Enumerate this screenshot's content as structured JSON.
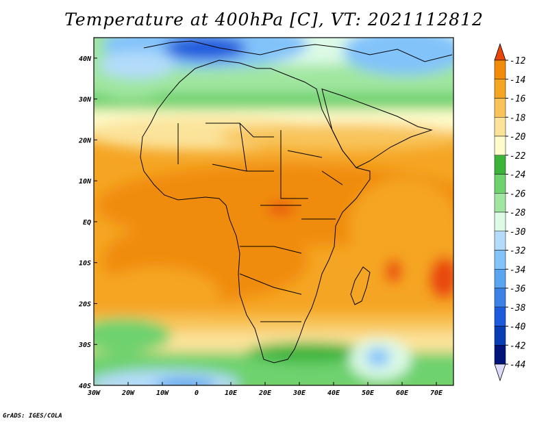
{
  "title": "Temperature at 400hPa [C], VT: 2021112812",
  "credit": "GrADS: IGES/COLA",
  "map": {
    "lon_range": [
      -30,
      75
    ],
    "lat_range": [
      -40,
      45
    ],
    "lon_ticks": [
      {
        "value": -30,
        "label": "30W"
      },
      {
        "value": -20,
        "label": "20W"
      },
      {
        "value": -10,
        "label": "10W"
      },
      {
        "value": 0,
        "label": "0"
      },
      {
        "value": 10,
        "label": "10E"
      },
      {
        "value": 20,
        "label": "20E"
      },
      {
        "value": 30,
        "label": "30E"
      },
      {
        "value": 40,
        "label": "40E"
      },
      {
        "value": 50,
        "label": "50E"
      },
      {
        "value": 60,
        "label": "60E"
      },
      {
        "value": 70,
        "label": "70E"
      }
    ],
    "lat_ticks": [
      {
        "value": 40,
        "label": "40N"
      },
      {
        "value": 30,
        "label": "30N"
      },
      {
        "value": 20,
        "label": "20N"
      },
      {
        "value": 10,
        "label": "10N"
      },
      {
        "value": 0,
        "label": "EQ"
      },
      {
        "value": -10,
        "label": "10S"
      },
      {
        "value": -20,
        "label": "20S"
      },
      {
        "value": -30,
        "label": "30S"
      },
      {
        "value": -40,
        "label": "40S"
      }
    ]
  },
  "colorbar": {
    "labels": [
      "-12",
      "-14",
      "-16",
      "-18",
      "-20",
      "-22",
      "-24",
      "-26",
      "-28",
      "-30",
      "-32",
      "-34",
      "-36",
      "-38",
      "-40",
      "-42",
      "-44"
    ],
    "colors": [
      "#e8460a",
      "#f08c0a",
      "#f5a524",
      "#f8c45a",
      "#fbe39a",
      "#fffccc",
      "#3cb43c",
      "#6ed26e",
      "#a0e6a0",
      "#dcfae6",
      "#b4dcfa",
      "#82c3fa",
      "#5aa5f0",
      "#3c82e6",
      "#1e5adc",
      "#0a3cb4",
      "#00147a"
    ],
    "top_color": "#e8460a",
    "bottom_color": "#dcdcfa"
  },
  "colors": {
    "land_outline": "#000000"
  }
}
